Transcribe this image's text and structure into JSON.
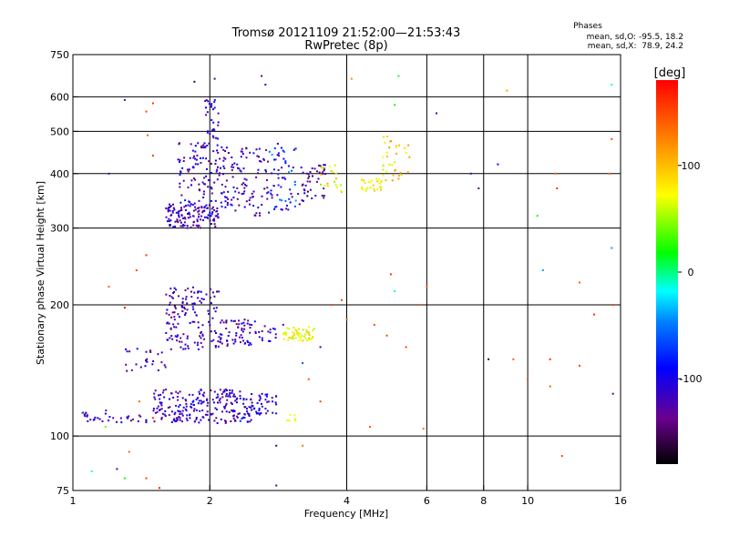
{
  "chart_data": {
    "type": "scatter",
    "title": "Tromsø 20121109 21:52:00—21:53:43",
    "subtitle": "RwPretec (8p)",
    "xlabel": "Frequency [MHz]",
    "ylabel": "Stationary phase Virtual Height [km]",
    "x_scale": "log",
    "y_scale": "log",
    "xlim": [
      1,
      16
    ],
    "ylim": [
      75,
      750
    ],
    "grid": true,
    "x_ticks": [
      1,
      2,
      4,
      6,
      8,
      10,
      16
    ],
    "y_ticks": [
      75,
      100,
      200,
      300,
      400,
      500,
      600,
      750
    ],
    "x_grid": [
      2,
      4,
      6,
      8,
      10
    ],
    "y_grid": [
      100,
      200,
      300,
      400,
      500,
      600
    ],
    "stats": {
      "heading": "Phases",
      "line0": "mean, sd,O: -95.5, 18.2",
      "line1": "mean, sd,X:  78.9, 24.2"
    },
    "colorbar": {
      "label": "[deg]",
      "min": -180,
      "max": 180,
      "ticks": [
        100,
        0,
        -100
      ]
    },
    "point_groups": [
      {
        "x_range": [
          1.05,
          1.2
        ],
        "y_range": [
          108,
          115
        ],
        "value_range": [
          -140,
          -90
        ],
        "count": 20
      },
      {
        "x_range": [
          1.2,
          1.45
        ],
        "y_range": [
          107,
          112
        ],
        "value_range": [
          -140,
          -90
        ],
        "count": 16
      },
      {
        "x_range": [
          1.5,
          2.0
        ],
        "y_range": [
          107,
          128
        ],
        "value_range": [
          -150,
          -80
        ],
        "count": 130
      },
      {
        "x_range": [
          2.0,
          2.5
        ],
        "y_range": [
          107,
          128
        ],
        "value_range": [
          -150,
          -80
        ],
        "count": 110
      },
      {
        "x_range": [
          2.5,
          2.8
        ],
        "y_range": [
          112,
          125
        ],
        "value_range": [
          -140,
          -80
        ],
        "count": 35
      },
      {
        "x_range": [
          2.9,
          3.1
        ],
        "y_range": [
          108,
          112
        ],
        "value_range": [
          60,
          100
        ],
        "count": 6
      },
      {
        "x_range": [
          1.3,
          1.6
        ],
        "y_range": [
          140,
          160
        ],
        "value_range": [
          -150,
          -90
        ],
        "count": 25
      },
      {
        "x_range": [
          1.6,
          2.1
        ],
        "y_range": [
          158,
          220
        ],
        "value_range": [
          -150,
          -90
        ],
        "count": 140
      },
      {
        "x_range": [
          2.1,
          2.5
        ],
        "y_range": [
          160,
          185
        ],
        "value_range": [
          -150,
          -90
        ],
        "count": 60
      },
      {
        "x_range": [
          2.5,
          2.8
        ],
        "y_range": [
          165,
          185
        ],
        "value_range": [
          -140,
          -80
        ],
        "count": 18
      },
      {
        "x_range": [
          2.9,
          3.4
        ],
        "y_range": [
          165,
          178
        ],
        "value_range": [
          50,
          100
        ],
        "count": 55
      },
      {
        "x_range": [
          1.6,
          2.1
        ],
        "y_range": [
          300,
          340
        ],
        "value_range": [
          -150,
          -90
        ],
        "count": 130
      },
      {
        "x_range": [
          1.7,
          2.2
        ],
        "y_range": [
          340,
          470
        ],
        "value_range": [
          -150,
          -80
        ],
        "count": 110
      },
      {
        "x_range": [
          1.95,
          2.1
        ],
        "y_range": [
          480,
          600
        ],
        "value_range": [
          -140,
          -80
        ],
        "count": 30
      },
      {
        "x_range": [
          2.1,
          2.7
        ],
        "y_range": [
          320,
          460
        ],
        "value_range": [
          -150,
          -80
        ],
        "count": 100
      },
      {
        "x_range": [
          2.7,
          3.1
        ],
        "y_range": [
          330,
          470
        ],
        "value_range": [
          -140,
          -40
        ],
        "count": 60
      },
      {
        "x_range": [
          3.1,
          3.6
        ],
        "y_range": [
          340,
          420
        ],
        "value_range": [
          -170,
          -90
        ],
        "count": 45
      },
      {
        "x_range": [
          3.5,
          3.9
        ],
        "y_range": [
          360,
          420
        ],
        "value_range": [
          40,
          110
        ],
        "count": 20
      },
      {
        "x_range": [
          4.3,
          4.8
        ],
        "y_range": [
          365,
          390
        ],
        "value_range": [
          60,
          100
        ],
        "count": 30
      },
      {
        "x_range": [
          4.8,
          5.5
        ],
        "y_range": [
          385,
          490
        ],
        "value_range": [
          50,
          120
        ],
        "count": 35
      }
    ],
    "scattered_points": [
      [
        1.05,
        113,
        -60
      ],
      [
        1.18,
        105,
        40
      ],
      [
        1.25,
        84,
        -130
      ],
      [
        1.3,
        80,
        20
      ],
      [
        1.33,
        92,
        140
      ],
      [
        1.4,
        120,
        140
      ],
      [
        1.45,
        80,
        150
      ],
      [
        1.5,
        110,
        160
      ],
      [
        1.2,
        220,
        140
      ],
      [
        1.38,
        240,
        150
      ],
      [
        1.45,
        260,
        160
      ],
      [
        1.3,
        197,
        170
      ],
      [
        1.45,
        555,
        150
      ],
      [
        1.5,
        580,
        160
      ],
      [
        1.5,
        440,
        160
      ],
      [
        1.46,
        490,
        140
      ],
      [
        1.3,
        590,
        -130
      ],
      [
        1.2,
        400,
        -120
      ],
      [
        1.1,
        83,
        -10
      ],
      [
        1.55,
        76,
        160
      ],
      [
        1.85,
        650,
        -160
      ],
      [
        2.05,
        660,
        -120
      ],
      [
        2.6,
        670,
        -130
      ],
      [
        2.65,
        640,
        -120
      ],
      [
        2.8,
        95,
        -150
      ],
      [
        2.8,
        77,
        -130
      ],
      [
        2.9,
        180,
        -120
      ],
      [
        3.2,
        95,
        130
      ],
      [
        3.3,
        135,
        140
      ],
      [
        3.5,
        120,
        150
      ],
      [
        3.7,
        200,
        150
      ],
      [
        3.9,
        205,
        150
      ],
      [
        3.5,
        160,
        -110
      ],
      [
        3.2,
        147,
        -60
      ],
      [
        4.0,
        185,
        140
      ],
      [
        4.1,
        660,
        120
      ],
      [
        4.5,
        105,
        140
      ],
      [
        4.6,
        180,
        150
      ],
      [
        4.9,
        170,
        150
      ],
      [
        5.0,
        235,
        160
      ],
      [
        5.1,
        215,
        -10
      ],
      [
        5.1,
        575,
        20
      ],
      [
        5.2,
        670,
        10
      ],
      [
        5.4,
        160,
        150
      ],
      [
        5.8,
        200,
        140
      ],
      [
        5.9,
        104,
        130
      ],
      [
        6.0,
        220,
        140
      ],
      [
        6.3,
        550,
        -110
      ],
      [
        7.5,
        400,
        -120
      ],
      [
        7.8,
        370,
        -130
      ],
      [
        8.2,
        150,
        -160
      ],
      [
        8.6,
        420,
        -100
      ],
      [
        9.0,
        620,
        110
      ],
      [
        9.3,
        150,
        140
      ],
      [
        10.0,
        135,
        150
      ],
      [
        10.5,
        320,
        20
      ],
      [
        10.8,
        240,
        -40
      ],
      [
        11.2,
        150,
        160
      ],
      [
        11.5,
        400,
        140
      ],
      [
        11.6,
        370,
        160
      ],
      [
        11.9,
        90,
        150
      ],
      [
        11.2,
        130,
        140
      ],
      [
        13.0,
        225,
        140
      ],
      [
        13.0,
        145,
        150
      ],
      [
        14.0,
        190,
        160
      ],
      [
        15.1,
        400,
        140
      ],
      [
        15.3,
        480,
        150
      ],
      [
        15.3,
        270,
        -40
      ],
      [
        15.3,
        640,
        -10
      ],
      [
        15.4,
        125,
        -140
      ],
      [
        15.4,
        200,
        150
      ]
    ]
  }
}
